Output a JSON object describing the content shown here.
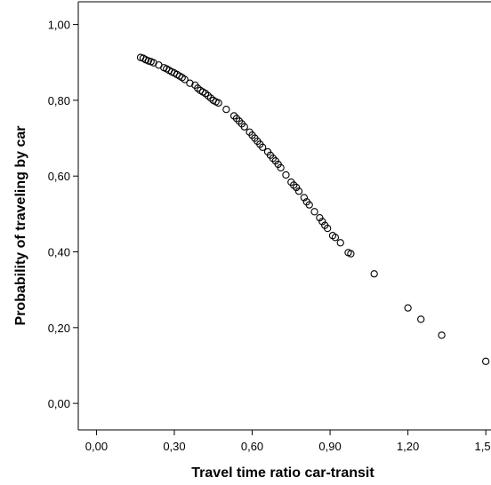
{
  "chart_data": {
    "type": "scatter",
    "xlabel": "Travel time ratio car-transit",
    "ylabel": "Probability of traveling by car",
    "xlim": [
      -0.07,
      1.52
    ],
    "ylim": [
      -0.07,
      1.06
    ],
    "x_ticks": [
      "0,00",
      "0,30",
      "0,60",
      "0,90",
      "1,20",
      "1,50"
    ],
    "x_tick_values": [
      0,
      0.3,
      0.6,
      0.9,
      1.2,
      1.5
    ],
    "y_ticks": [
      "0,00",
      "0,20",
      "0,40",
      "0,60",
      "0,80",
      "1,00"
    ],
    "y_tick_values": [
      0,
      0.2,
      0.4,
      0.6,
      0.8,
      1.0
    ],
    "grid": false,
    "legend": "none",
    "marker": "open-circle",
    "points": [
      [
        0.17,
        0.913
      ],
      [
        0.18,
        0.911
      ],
      [
        0.19,
        0.907
      ],
      [
        0.2,
        0.904
      ],
      [
        0.21,
        0.902
      ],
      [
        0.22,
        0.899
      ],
      [
        0.24,
        0.893
      ],
      [
        0.26,
        0.886
      ],
      [
        0.27,
        0.883
      ],
      [
        0.28,
        0.879
      ],
      [
        0.29,
        0.875
      ],
      [
        0.3,
        0.872
      ],
      [
        0.31,
        0.868
      ],
      [
        0.32,
        0.864
      ],
      [
        0.33,
        0.86
      ],
      [
        0.34,
        0.855
      ],
      [
        0.36,
        0.845
      ],
      [
        0.38,
        0.84
      ],
      [
        0.39,
        0.832
      ],
      [
        0.4,
        0.826
      ],
      [
        0.41,
        0.822
      ],
      [
        0.42,
        0.818
      ],
      [
        0.43,
        0.812
      ],
      [
        0.44,
        0.806
      ],
      [
        0.45,
        0.8
      ],
      [
        0.46,
        0.796
      ],
      [
        0.47,
        0.793
      ],
      [
        0.5,
        0.776
      ],
      [
        0.53,
        0.759
      ],
      [
        0.54,
        0.752
      ],
      [
        0.55,
        0.745
      ],
      [
        0.56,
        0.738
      ],
      [
        0.57,
        0.73
      ],
      [
        0.59,
        0.716
      ],
      [
        0.6,
        0.708
      ],
      [
        0.61,
        0.7
      ],
      [
        0.62,
        0.692
      ],
      [
        0.63,
        0.684
      ],
      [
        0.64,
        0.676
      ],
      [
        0.66,
        0.664
      ],
      [
        0.67,
        0.655
      ],
      [
        0.68,
        0.647
      ],
      [
        0.69,
        0.64
      ],
      [
        0.7,
        0.631
      ],
      [
        0.71,
        0.622
      ],
      [
        0.73,
        0.603
      ],
      [
        0.75,
        0.584
      ],
      [
        0.76,
        0.576
      ],
      [
        0.77,
        0.57
      ],
      [
        0.78,
        0.56
      ],
      [
        0.8,
        0.543
      ],
      [
        0.81,
        0.532
      ],
      [
        0.82,
        0.524
      ],
      [
        0.84,
        0.506
      ],
      [
        0.86,
        0.49
      ],
      [
        0.87,
        0.48
      ],
      [
        0.88,
        0.47
      ],
      [
        0.89,
        0.462
      ],
      [
        0.91,
        0.443
      ],
      [
        0.92,
        0.438
      ],
      [
        0.94,
        0.424
      ],
      [
        0.97,
        0.398
      ],
      [
        0.98,
        0.395
      ],
      [
        1.07,
        0.342
      ],
      [
        1.2,
        0.252
      ],
      [
        1.25,
        0.222
      ],
      [
        1.33,
        0.18
      ],
      [
        1.5,
        0.111
      ]
    ]
  }
}
